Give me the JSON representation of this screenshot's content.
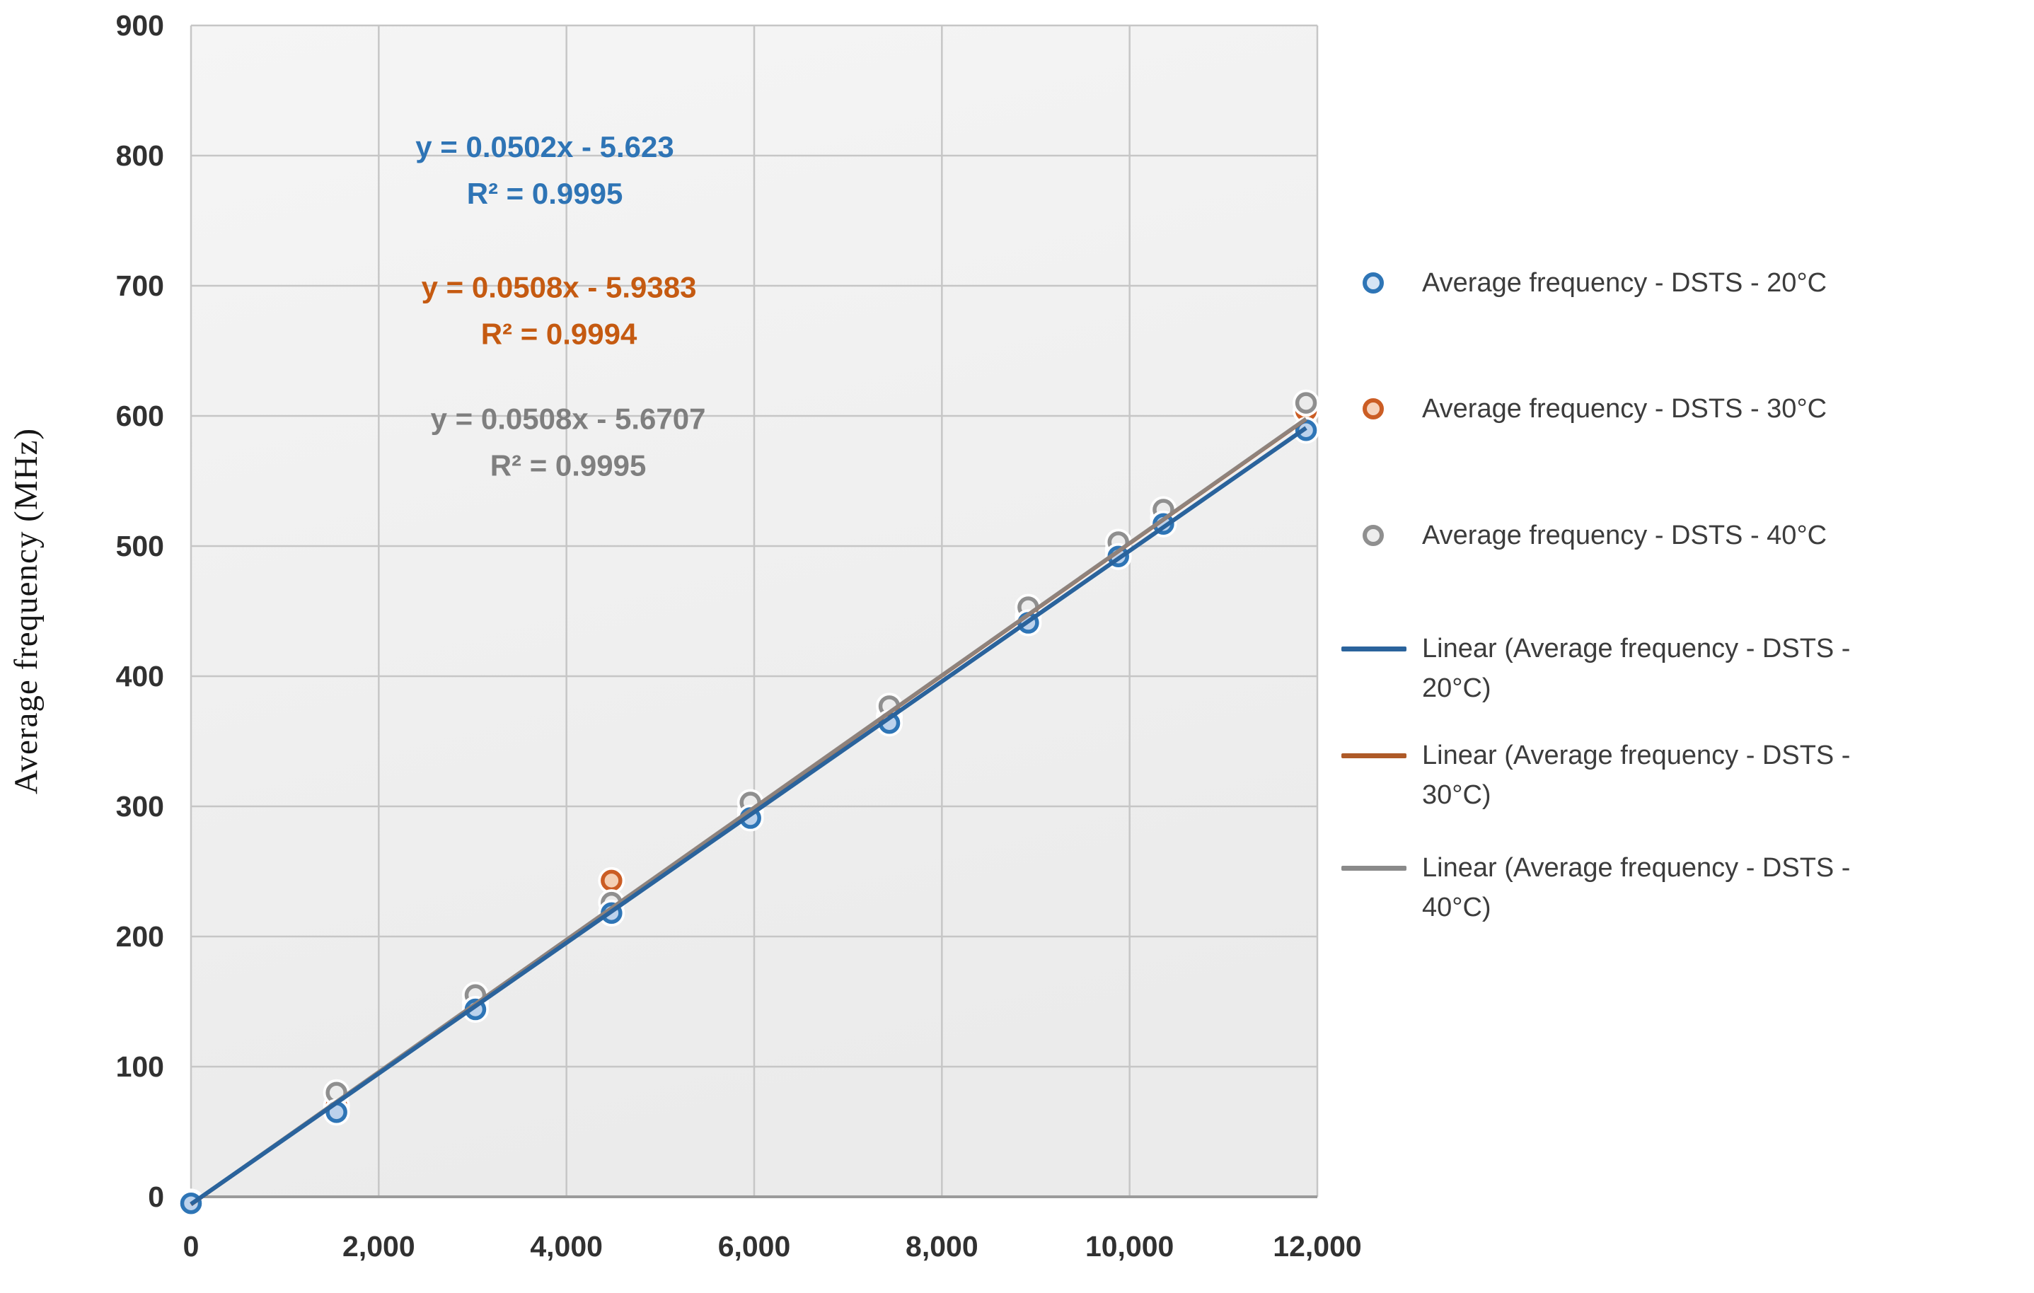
{
  "chart_data": {
    "type": "scatter",
    "title": "",
    "xlabel": "",
    "ylabel": "Average frequency  (MHz)",
    "xlim": [
      0,
      12000
    ],
    "ylim": [
      0,
      900
    ],
    "grid": true,
    "legend_position": "right",
    "x_ticks": [
      0,
      2000,
      4000,
      6000,
      8000,
      10000,
      12000
    ],
    "x_tick_labels": [
      "0",
      "2,000",
      "4,000",
      "6,000",
      "8,000",
      "10,000",
      "12,000"
    ],
    "y_ticks": [
      0,
      100,
      200,
      300,
      400,
      500,
      600,
      700,
      800,
      900
    ],
    "y_tick_labels": [
      "0",
      "100",
      "200",
      "300",
      "400",
      "500",
      "600",
      "700",
      "800",
      "900"
    ],
    "series": [
      {
        "name": "Average frequency - DSTS - 20°C",
        "color": "#2E75B6",
        "fill": "#BCD2EC",
        "points": [
          [
            0,
            -5
          ],
          [
            1550,
            65
          ],
          [
            3030,
            144
          ],
          [
            4480,
            218
          ],
          [
            5960,
            291
          ],
          [
            7440,
            364
          ],
          [
            8920,
            441
          ],
          [
            9880,
            492
          ],
          [
            10360,
            517
          ],
          [
            11880,
            589
          ]
        ]
      },
      {
        "name": "Average frequency - DSTS - 30°C",
        "color": "#CB5D24",
        "fill": "#F4CFB4",
        "points": [
          [
            0,
            -5
          ],
          [
            1550,
            70
          ],
          [
            3030,
            149
          ],
          [
            4480,
            243
          ],
          [
            5960,
            296
          ],
          [
            7440,
            369
          ],
          [
            8920,
            446
          ],
          [
            9880,
            497
          ],
          [
            10360,
            522
          ],
          [
            11880,
            604
          ]
        ]
      },
      {
        "name": "Average frequency - DSTS - 40°C",
        "color": "#8F8F8F",
        "fill": "#ECECEC",
        "points": [
          [
            0,
            -4
          ],
          [
            1550,
            80
          ],
          [
            3030,
            155
          ],
          [
            4480,
            226
          ],
          [
            5960,
            303
          ],
          [
            7440,
            377
          ],
          [
            8920,
            453
          ],
          [
            9880,
            503
          ],
          [
            10360,
            528
          ],
          [
            11880,
            610
          ]
        ]
      }
    ],
    "trendlines": [
      {
        "name": "Linear (Average frequency - DSTS - 20°C)",
        "color": "#2A639C",
        "slope": 0.0502,
        "intercept": -5.623,
        "r2": 0.9995,
        "x_range": [
          0,
          11880
        ]
      },
      {
        "name": "Linear (Average frequency - DSTS - 30°C)",
        "color": "#AE5A28",
        "slope": 0.0508,
        "intercept": -5.9383,
        "r2": 0.9994,
        "x_range": [
          0,
          11880
        ]
      },
      {
        "name": "Linear (Average frequency - DSTS - 40°C)",
        "color": "#8A8A8A",
        "slope": 0.0508,
        "intercept": -5.6707,
        "r2": 0.9995,
        "x_range": [
          0,
          11880
        ]
      }
    ],
    "annotations": [
      {
        "lines": [
          "y = 0.0502x - 5.623",
          "R² = 0.9995"
        ],
        "color": "#2E74B5",
        "x": 3769,
        "y": 799
      },
      {
        "lines": [
          "y = 0.0508x - 5.9383",
          "R² = 0.9994"
        ],
        "color": "#C55A11",
        "x": 3920,
        "y": 691
      },
      {
        "lines": [
          "y = 0.0508x - 5.6707",
          "R² = 0.9995"
        ],
        "color": "#7F7F7F",
        "x": 4018,
        "y": 590
      }
    ]
  },
  "legend": {
    "items": [
      {
        "type": "marker",
        "label": "Average frequency - DSTS - 20°C",
        "color": "#2E75B6",
        "fill": "#D6E4F4"
      },
      {
        "type": "marker",
        "label": "Average frequency - DSTS - 30°C",
        "color": "#CB5D24",
        "fill": "#F6D3BC"
      },
      {
        "type": "marker",
        "label": "Average frequency - DSTS - 40°C",
        "color": "#8F8F8F",
        "fill": "#EDEDED"
      },
      {
        "type": "line",
        "label": "Linear (Average frequency - DSTS - 20°C)",
        "color": "#2A639C"
      },
      {
        "type": "line",
        "label": "Linear (Average frequency - DSTS - 30°C)",
        "color": "#AE5A28"
      },
      {
        "type": "line",
        "label": "Linear (Average frequency - DSTS - 40°C)",
        "color": "#8A8A8A"
      }
    ]
  }
}
